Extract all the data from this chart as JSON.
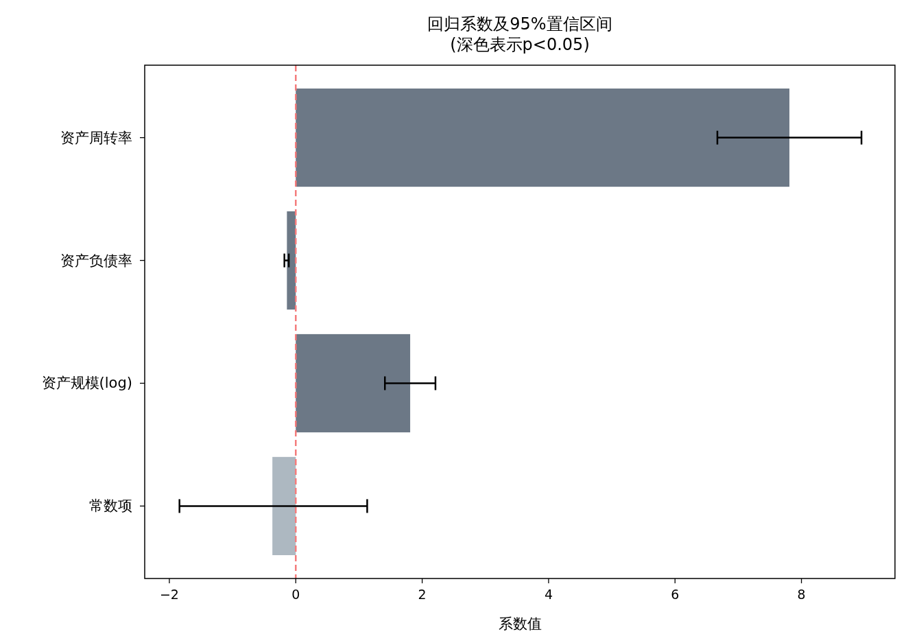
{
  "chart_data": {
    "type": "bar",
    "orientation": "horizontal",
    "title": "回归系数及95%置信区间\n(深色表示p<0.05)",
    "xlabel": "系数值",
    "categories": [
      "资产周转率",
      "资产负债率",
      "资产规模(log)",
      "常数项"
    ],
    "values": [
      7.81,
      -0.14,
      1.81,
      -0.37
    ],
    "colors": [
      "#6c7886",
      "#6c7886",
      "#6c7886",
      "#adb8c1"
    ],
    "errors": [
      [
        6.67,
        8.95
      ],
      [
        -0.18,
        -0.11
      ],
      [
        1.41,
        2.21
      ],
      [
        -1.84,
        1.13
      ]
    ],
    "xlim": [
      -2.39,
      9.48
    ],
    "xticks": [
      {
        "value": -2,
        "label": "−2"
      },
      0,
      2,
      4,
      6,
      8
    ],
    "ref_lines": [
      {
        "axis": "x",
        "value": 0,
        "color": "#f47c7c",
        "line_style": "dashed"
      }
    ],
    "grid": false
  }
}
